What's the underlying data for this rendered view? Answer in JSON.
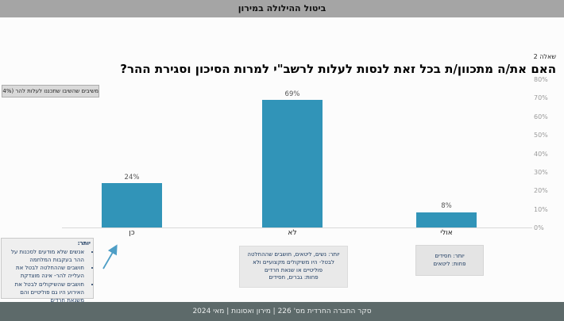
{
  "top_bar": {
    "title": "ביטול ההילולה במירון"
  },
  "question_label": "שאלה 2",
  "chart_data": {
    "type": "bar",
    "title": "האם את/ה מתכוון/ת בכל זאת לנסות לעלות לרשב\"י למרות הסיכון וסגירת ההר?",
    "categories": [
      "כן",
      "לא",
      "אולי"
    ],
    "values": [
      24,
      69,
      8
    ],
    "value_labels": [
      "24%",
      "69%",
      "8%"
    ],
    "xlabel": "",
    "ylabel": "",
    "ylim": [
      0,
      80
    ],
    "yticks": [
      "80%",
      "70%",
      "60%",
      "50%",
      "40%",
      "30%",
      "20%",
      "10%",
      "0%"
    ],
    "bar_color": "#3194b8",
    "grid": false,
    "legend_position": "none",
    "filter_note": "משיבים שהשיבו שתכננו לעלות להר (34%)"
  },
  "annotations": {
    "yes": {
      "header": "יותר:",
      "bullets": [
        "אנשים שלא מודעים לסכנות על ההר בעקבות המלחמה",
        "חושבים שההחלטה לבטל את העלייה להר- אינה מוצדקת",
        "חושבים שהשיקולים לבטל את האירוע היו גם פוליטיים והם משנאת חרדים"
      ]
    },
    "no": {
      "lines": [
        "יותר: נשים, ליטאים, חושבים שההחלטה לבטל- היו משיקולים מקצועיים ולא פוליטיים או שנאת חרדים",
        "פחות: גברים, חסידים"
      ]
    },
    "maybe": {
      "lines": [
        "יותר: חסידים",
        "פחות: ליטאים"
      ]
    }
  },
  "footer": {
    "text": "סקר החברה החרדית מס' 226  | מירון ואסונות | מאי 2024"
  }
}
